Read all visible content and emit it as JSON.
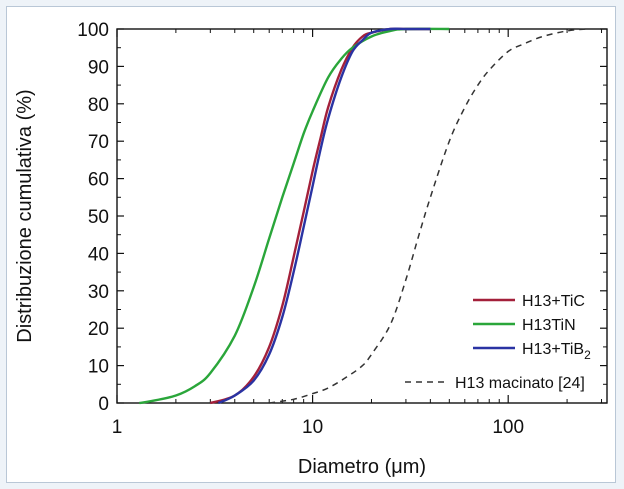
{
  "chart_data": {
    "type": "line",
    "xlabel": "Diametro (μm)",
    "ylabel": "Distribuzione cumulativa (%)",
    "x_scale": "log",
    "xlim": [
      1,
      320
    ],
    "ylim": [
      0,
      100
    ],
    "x_ticks": [
      1,
      10,
      100
    ],
    "x_tick_labels": [
      "1",
      "10",
      "100"
    ],
    "y_ticks": [
      0,
      10,
      20,
      30,
      40,
      50,
      60,
      70,
      80,
      90,
      100
    ],
    "y_tick_labels": [
      "0",
      "10",
      "20",
      "30",
      "40",
      "50",
      "60",
      "70",
      "80",
      "90",
      "100"
    ],
    "grid": false,
    "legend_position": "bottom-right",
    "series": [
      {
        "name": "H13+TiC",
        "color": "#a3203a",
        "dash": "solid",
        "x": [
          3,
          4,
          5,
          6,
          7,
          8,
          9,
          10,
          11,
          12,
          14,
          16,
          18,
          20,
          25,
          30,
          40
        ],
        "y": [
          0,
          2,
          7,
          15,
          26,
          39,
          51,
          62,
          71,
          79,
          89,
          95,
          98,
          99,
          100,
          100,
          100
        ]
      },
      {
        "name": "H13TiN",
        "label_main": "H13TiN",
        "color": "#2aa63a",
        "dash": "solid",
        "x": [
          1.3,
          1.5,
          2,
          2.5,
          3,
          4,
          5,
          6,
          7,
          8,
          9,
          10,
          12,
          14,
          16,
          20,
          25,
          30,
          50
        ],
        "y": [
          0,
          0.5,
          2,
          4.5,
          8,
          18,
          31,
          44,
          55,
          64,
          72,
          78,
          87,
          92,
          95,
          98,
          99.5,
          100,
          100
        ]
      },
      {
        "name": "H13+TiB2",
        "label_main": "H13+TiB",
        "label_sub": "2",
        "color": "#2a33a3",
        "dash": "solid",
        "x": [
          3.3,
          4,
          5,
          6,
          7,
          8,
          9,
          10,
          11,
          12,
          14,
          16,
          18,
          20,
          25,
          30,
          40
        ],
        "y": [
          0,
          2,
          6,
          13,
          23,
          35,
          47,
          58,
          68,
          76,
          87,
          94,
          97,
          99,
          100,
          100,
          100
        ]
      },
      {
        "name": "H13 macinato [24]",
        "color": "#333333",
        "dash": "dashed",
        "x": [
          6,
          8,
          10,
          12,
          15,
          18,
          20,
          25,
          30,
          35,
          40,
          50,
          60,
          70,
          80,
          100,
          120,
          150,
          200,
          250
        ],
        "y": [
          0,
          1,
          2.5,
          4,
          7,
          10,
          13,
          21,
          33,
          45,
          55,
          70,
          79,
          85,
          89,
          94,
          96,
          98,
          99.5,
          100
        ]
      }
    ]
  }
}
